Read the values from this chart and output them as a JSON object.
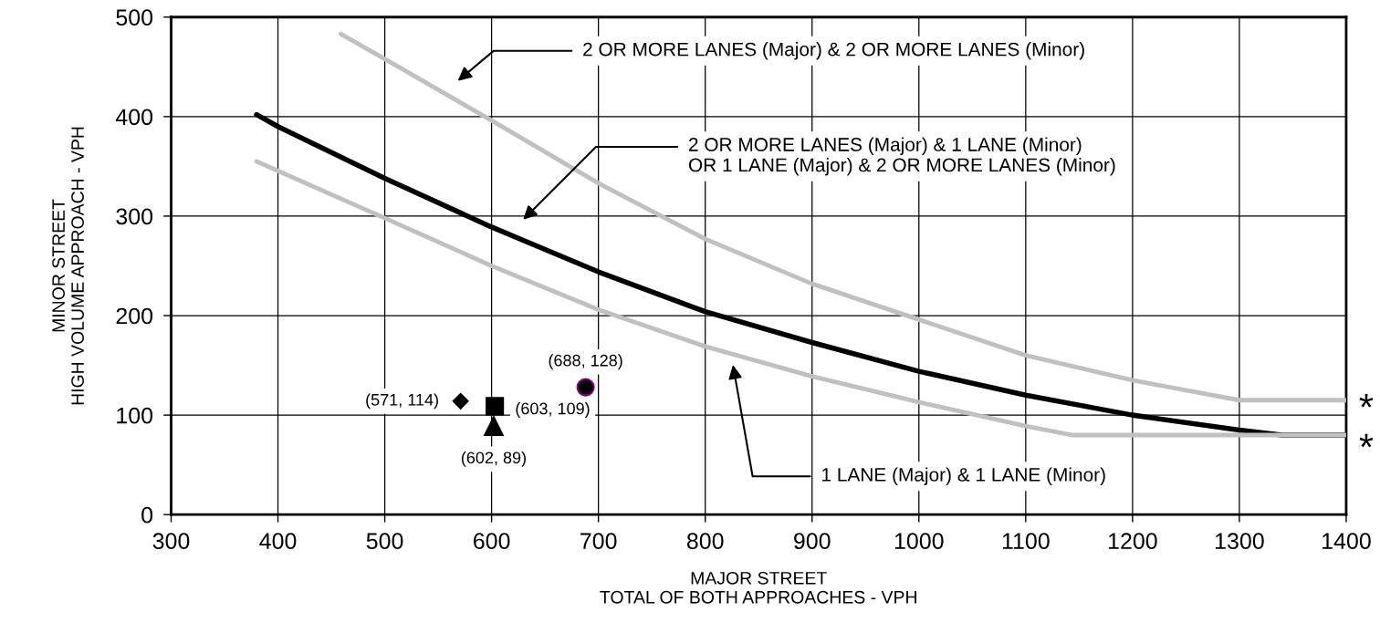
{
  "chart_data": {
    "type": "line",
    "xlabel": "MAJOR STREET\nTOTAL OF BOTH APPROACHES - VPH",
    "ylabel": "MINOR STREET\nHIGH VOLUME APPROACH - VPH",
    "xlim": [
      300,
      1400
    ],
    "xticks": [
      300,
      400,
      500,
      600,
      700,
      800,
      900,
      1000,
      1100,
      1200,
      1300,
      1400
    ],
    "ylim": [
      0,
      500
    ],
    "yticks": [
      0,
      100,
      200,
      300,
      400,
      500
    ],
    "grid": true,
    "marker": "none",
    "line_style": "solid",
    "series": [
      {
        "color": "#c0c0c0",
        "x": [
          459,
          500,
          600,
          700,
          800,
          900,
          1000,
          1100,
          1200,
          1300,
          1400
        ],
        "values": [
          483,
          458,
          396,
          333,
          277,
          232,
          196,
          160,
          135,
          115,
          115
        ]
      },
      {
        "color": "#000000",
        "x": [
          380,
          400,
          500,
          600,
          700,
          800,
          900,
          1000,
          1100,
          1200,
          1300,
          1340,
          1400
        ],
        "values": [
          402,
          390,
          338,
          289,
          244,
          204,
          173,
          144,
          120,
          100,
          85,
          80,
          80
        ]
      },
      {
        "color": "#c0c0c0",
        "x": [
          380,
          500,
          600,
          700,
          800,
          900,
          1000,
          1100,
          1143,
          1400
        ],
        "values": [
          355,
          298,
          250,
          206,
          169,
          139,
          113,
          89,
          80,
          80
        ]
      },
      {
        "type": "scatter",
        "marker": "diamond",
        "color": "#000000",
        "x": [
          571
        ],
        "values": [
          114
        ]
      },
      {
        "type": "scatter",
        "marker": "square",
        "color": "#000000",
        "x": [
          603
        ],
        "values": [
          109
        ]
      },
      {
        "type": "scatter",
        "marker": "triangle",
        "color": "#000000",
        "x": [
          602
        ],
        "values": [
          89
        ]
      },
      {
        "type": "scatter",
        "marker": "circle",
        "color": "#000000",
        "x": [
          688
        ],
        "values": [
          128
        ]
      }
    ],
    "annotations": [
      "2 OR MORE LANES (Major) & 2 OR MORE LANES (Minor)",
      "2 OR MORE LANES (Major) & 1 LANE (Minor)\nOR 1 LANE (Major) & 2 OR MORE LANES (Minor)",
      "1 LANE (Major) & 1 LANE (Minor)",
      {
        "text": "(571, 114)",
        "x": 571,
        "y": 114
      },
      {
        "text": "(603, 109)",
        "x": 603,
        "y": 109
      },
      {
        "text": "(602, 89)",
        "x": 602,
        "y": 89
      },
      {
        "text": "(688, 128)",
        "x": 688,
        "y": 128
      },
      {
        "text": "*",
        "x": 1400,
        "y": 115
      },
      {
        "text": "*",
        "x": 1400,
        "y": 80
      }
    ]
  }
}
